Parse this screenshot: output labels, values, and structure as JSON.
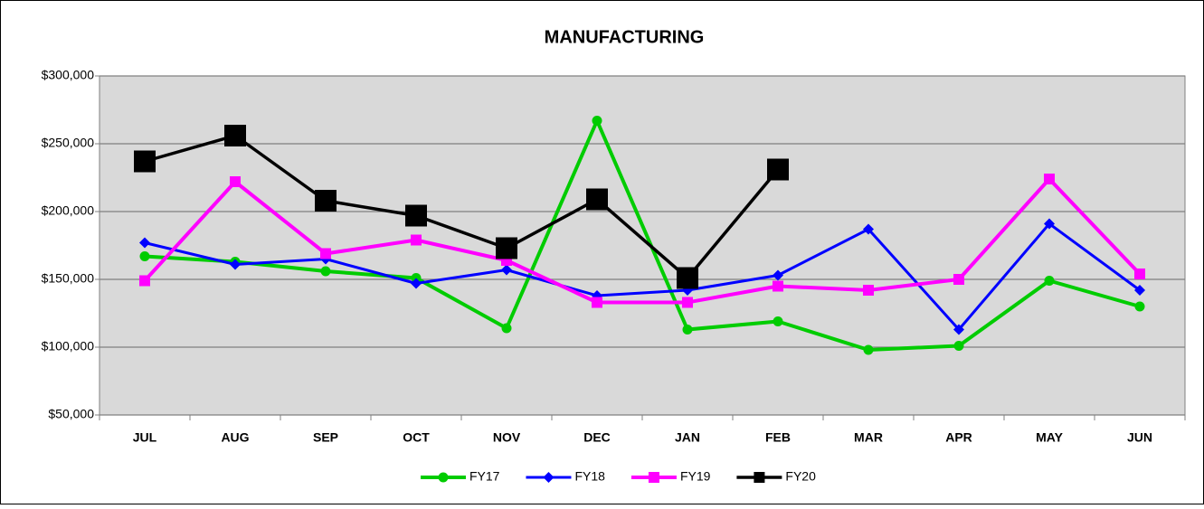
{
  "chart_data": {
    "type": "line",
    "title": "MANUFACTURING",
    "categories": [
      "JUL",
      "AUG",
      "SEP",
      "OCT",
      "NOV",
      "DEC",
      "JAN",
      "FEB",
      "MAR",
      "APR",
      "MAY",
      "JUN"
    ],
    "series": [
      {
        "name": "FY17",
        "color": "#00cc00",
        "marker": "circle",
        "values": [
          167000,
          163000,
          156000,
          151000,
          114000,
          267000,
          113000,
          119000,
          98000,
          101000,
          149000,
          130000
        ]
      },
      {
        "name": "FY18",
        "color": "#0000ff",
        "marker": "diamond",
        "values": [
          177000,
          161000,
          165000,
          147000,
          157000,
          138000,
          142000,
          153000,
          187000,
          113000,
          191000,
          142000
        ]
      },
      {
        "name": "FY19",
        "color": "#ff00ff",
        "marker": "square",
        "values": [
          149000,
          222000,
          169000,
          179000,
          164000,
          133000,
          133000,
          145000,
          142000,
          150000,
          224000,
          154000
        ]
      },
      {
        "name": "FY20",
        "color": "#000000",
        "marker": "big-square",
        "values": [
          237000,
          256000,
          208000,
          197000,
          173000,
          209000,
          151000,
          231000,
          null,
          null,
          null,
          null
        ]
      }
    ],
    "ylim": [
      50000,
      300000
    ],
    "yticks": [
      {
        "value": 50000,
        "label": "$50,000"
      },
      {
        "value": 100000,
        "label": "$100,000"
      },
      {
        "value": 150000,
        "label": "$150,000"
      },
      {
        "value": 200000,
        "label": "$200,000"
      },
      {
        "value": 250000,
        "label": "$250,000"
      },
      {
        "value": 300000,
        "label": "$300,000"
      }
    ],
    "grid": true,
    "legend": "bottom"
  }
}
